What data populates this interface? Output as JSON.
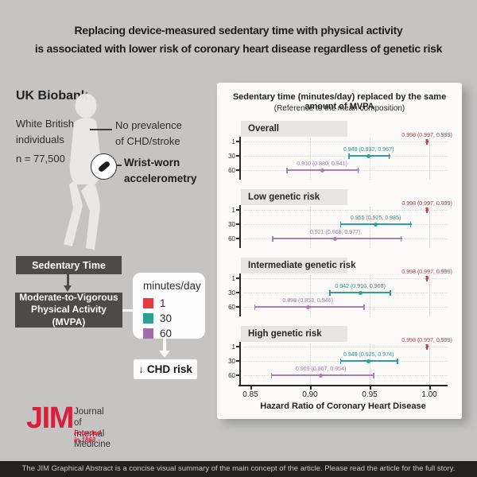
{
  "title": {
    "line1": "Replacing device-measured sedentary time with physical activity",
    "line2": "is associated with lower risk of coronary heart disease regardless of genetic risk"
  },
  "study": {
    "cohort": "UK Biobank",
    "population": "White British\nindividuals",
    "sample_size": "n = 77,500",
    "exclusion": "No prevalence\nof CHD/stroke",
    "measurement": "Wrist-worn\naccelerometry"
  },
  "flow": {
    "from_box": "Sedentary Time",
    "to_box": "Moderate-to-Vigorous\nPhysical Activity (MVPA)",
    "outcome_arrow": "↓",
    "outcome_label": "CHD risk"
  },
  "legend": {
    "title": "minutes/day",
    "items": [
      {
        "label": "1",
        "color": "#e23b41"
      },
      {
        "label": "30",
        "color": "#2aa08f"
      },
      {
        "label": "60",
        "color": "#a66ab0"
      }
    ]
  },
  "chart_data": {
    "type": "forest",
    "title": "Sedentary time (minutes/day) replaced by the same amount of MVPA",
    "subtitle": "(Reference to the mean composition)",
    "xlabel": "Hazard Ratio of Coronary Heart Disease",
    "x_ticks": [
      0.85,
      0.9,
      0.95,
      1.0
    ],
    "x_tick_labels": [
      "0.85",
      "0.90",
      "0.95",
      "1.00"
    ],
    "xlim": [
      0.822,
      1.012
    ],
    "reference_value": 1.0,
    "y_axis_categories": [
      "1",
      "30",
      "60"
    ],
    "colors": {
      "1": "#c2424f",
      "30": "#2aa192",
      "60": "#a87fb5"
    },
    "groups": [
      {
        "label": "Overall",
        "rows": [
          {
            "minutes": "1",
            "hr": 0.998,
            "lo": 0.997,
            "hi": 0.999,
            "text": "0.998 (0.997, 0.999)"
          },
          {
            "minutes": "30",
            "hr": 0.949,
            "lo": 0.932,
            "hi": 0.967,
            "text": "0.949 (0.932, 0.967)"
          },
          {
            "minutes": "60",
            "hr": 0.91,
            "lo": 0.88,
            "hi": 0.941,
            "text": "0.910 (0.880, 0.941)"
          }
        ]
      },
      {
        "label": "Low genetic risk",
        "rows": [
          {
            "minutes": "1",
            "hr": 0.998,
            "lo": 0.997,
            "hi": 0.999,
            "text": "0.998 (0.997, 0.999)"
          },
          {
            "minutes": "30",
            "hr": 0.955,
            "lo": 0.925,
            "hi": 0.985,
            "text": "0.955 (0.925, 0.985)"
          },
          {
            "minutes": "60",
            "hr": 0.921,
            "lo": 0.868,
            "hi": 0.977,
            "text": "0.921 (0.868, 0.977)"
          }
        ]
      },
      {
        "label": "Intermediate genetic risk",
        "rows": [
          {
            "minutes": "1",
            "hr": 0.998,
            "lo": 0.997,
            "hi": 0.999,
            "text": "0.998 (0.997, 0.999)"
          },
          {
            "minutes": "30",
            "hr": 0.942,
            "lo": 0.916,
            "hi": 0.968,
            "text": "0.942 (0.916, 0.968)"
          },
          {
            "minutes": "60",
            "hr": 0.898,
            "lo": 0.853,
            "hi": 0.946,
            "text": "0.898 (0.853, 0.946)"
          }
        ]
      },
      {
        "label": "High genetic risk",
        "rows": [
          {
            "minutes": "1",
            "hr": 0.998,
            "lo": 0.997,
            "hi": 0.999,
            "text": "0.998 (0.997, 0.999)"
          },
          {
            "minutes": "30",
            "hr": 0.949,
            "lo": 0.925,
            "hi": 0.974,
            "text": "0.949 (0.925, 0.974)"
          },
          {
            "minutes": "60",
            "hr": 0.909,
            "lo": 0.867,
            "hi": 0.954,
            "text": "0.909 (0.867, 0.954)"
          }
        ]
      }
    ]
  },
  "logo": {
    "acronym": "JIM",
    "name": "Journal of\nInternal Medicine",
    "tagline": "Founded in 1863",
    "color": "#d6203e"
  },
  "footer": {
    "text": "The JIM Graphical Abstract is a concise visual summary of the main concept of the article. Please read the article for the full story."
  }
}
